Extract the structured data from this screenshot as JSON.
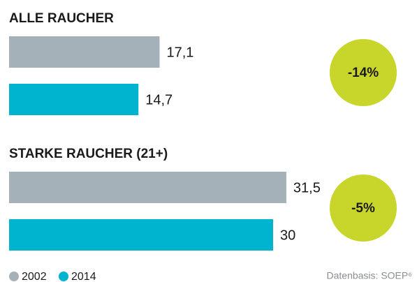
{
  "chart_data": [
    {
      "type": "bar",
      "title": "ALLE RAUCHER",
      "annotation": "-14%",
      "series": [
        {
          "name": "2002",
          "color": "#a5b1b8",
          "values": [
            17.1
          ],
          "value_labels": [
            "17,1"
          ]
        },
        {
          "name": "2014",
          "color": "#00b3cf",
          "values": [
            14.7
          ],
          "value_labels": [
            "14,7"
          ]
        }
      ]
    },
    {
      "type": "bar",
      "title": "STARKE RAUCHER (21+)",
      "annotation": "-5%",
      "series": [
        {
          "name": "2002",
          "color": "#a5b1b8",
          "values": [
            31.5
          ],
          "value_labels": [
            "31,5"
          ]
        },
        {
          "name": "2014",
          "color": "#00b3cf",
          "values": [
            30
          ],
          "value_labels": [
            "30"
          ]
        }
      ]
    }
  ],
  "annotation_color": "#c8d52b",
  "source": "Datenbasis: SOEP⁶"
}
